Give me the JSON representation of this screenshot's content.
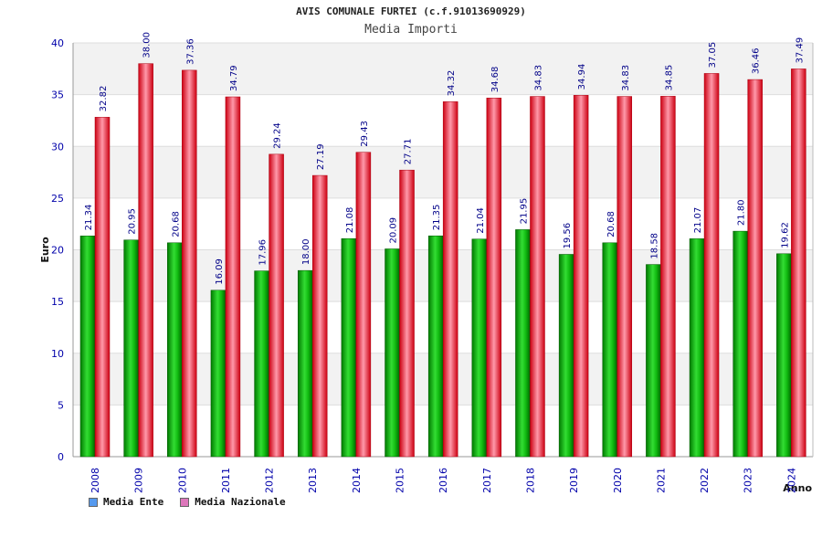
{
  "chart_data": {
    "type": "bar",
    "title": "AVIS COMUNALE FURTEI (c.f.91013690929)",
    "subtitle": "Media Importi",
    "xlabel": "Anno",
    "ylabel": "Euro",
    "ylim": [
      0,
      40
    ],
    "yticks": [
      "0",
      "5",
      "10",
      "15",
      "20",
      "25",
      "30",
      "35",
      "40"
    ],
    "categories": [
      "2008",
      "2009",
      "2010",
      "2011",
      "2012",
      "2013",
      "2014",
      "2015",
      "2016",
      "2017",
      "2018",
      "2019",
      "2020",
      "2021",
      "2022",
      "2023",
      "2024"
    ],
    "series": [
      {
        "name": "Media Ente",
        "color": "#00aa00",
        "legend_color": "#5599ee",
        "values": [
          21.34,
          20.95,
          20.68,
          16.09,
          17.96,
          18.0,
          21.08,
          20.09,
          21.35,
          21.04,
          21.95,
          19.56,
          20.68,
          18.58,
          21.07,
          21.8,
          19.62
        ],
        "labels": [
          "21.34",
          "20.95",
          "20.68",
          "16.09",
          "17.96",
          "18.00",
          "21.08",
          "20.09",
          "21.35",
          "21.04",
          "21.95",
          "19.56",
          "20.68",
          "18.58",
          "21.07",
          "21.80",
          "19.62"
        ]
      },
      {
        "name": "Media Nazionale",
        "color": "#ee1122",
        "legend_color": "#dd77bb",
        "values": [
          32.82,
          38.0,
          37.36,
          34.79,
          29.24,
          27.19,
          29.43,
          27.71,
          34.32,
          34.68,
          34.83,
          34.94,
          34.83,
          34.85,
          37.05,
          36.46,
          37.49
        ],
        "labels": [
          "32.82",
          "38.00",
          "37.36",
          "34.79",
          "29.24",
          "27.19",
          "29.43",
          "27.71",
          "34.32",
          "34.68",
          "34.83",
          "34.94",
          "34.83",
          "34.85",
          "37.05",
          "36.46",
          "37.49"
        ]
      }
    ],
    "grid": true,
    "legend_position": "bottom-left"
  }
}
